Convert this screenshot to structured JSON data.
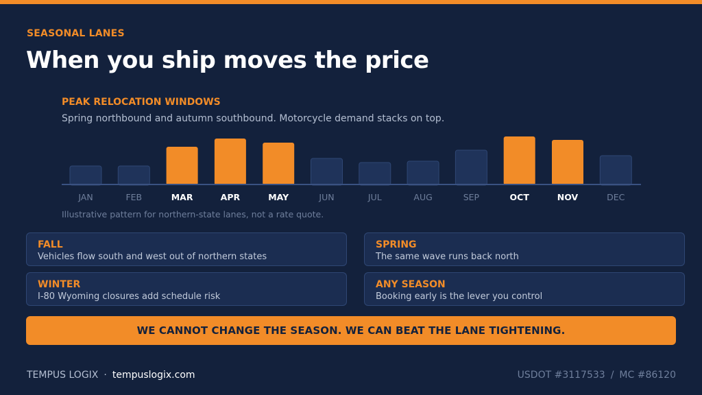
{
  "eyebrow": "SEASONAL LANES",
  "title": "When you ship moves the price",
  "chart_title": "PEAK RELOCATION WINDOWS",
  "chart_subtitle": "Spring northbound and autumn southbound. Motorcycle demand stacks on top.",
  "chart_note": "Illustrative pattern for northern-state lanes, not a rate quote.",
  "colors": {
    "background": "#13213c",
    "accent": "#f28c28",
    "bar_normal": "#1f335a",
    "bar_peak": "#f28c28",
    "label_normal": "#6f7f9c",
    "label_peak": "#ffffff"
  },
  "chart_data": {
    "type": "bar",
    "categories": [
      "JAN",
      "FEB",
      "MAR",
      "APR",
      "MAY",
      "JUN",
      "JUL",
      "AUG",
      "SEP",
      "OCT",
      "NOV",
      "DEC"
    ],
    "values": [
      26,
      26,
      54,
      66,
      60,
      37,
      31,
      33,
      49,
      69,
      64,
      41
    ],
    "highlighted": [
      false,
      false,
      true,
      true,
      true,
      false,
      false,
      false,
      false,
      true,
      true,
      false
    ],
    "title": "PEAK RELOCATION WINDOWS",
    "ylim": [
      0,
      75
    ],
    "grid": false,
    "legend": "none"
  },
  "cards": [
    {
      "title": "FALL",
      "text": "Vehicles flow south and west out of northern states"
    },
    {
      "title": "SPRING",
      "text": "The same wave runs back north"
    },
    {
      "title": "WINTER",
      "text": "I-80 Wyoming closures add schedule risk"
    },
    {
      "title": "ANY SEASON",
      "text": "Booking early is the lever you control"
    }
  ],
  "callout": "WE CANNOT CHANGE THE SEASON. WE CAN BEAT THE LANE TIGHTENING.",
  "footer": {
    "brand": "TEMPUS LOGIX",
    "separator": "·",
    "url": "tempuslogix.com",
    "usdot": "USDOT #3117533",
    "divider": "/",
    "mc": "MC #86120"
  }
}
